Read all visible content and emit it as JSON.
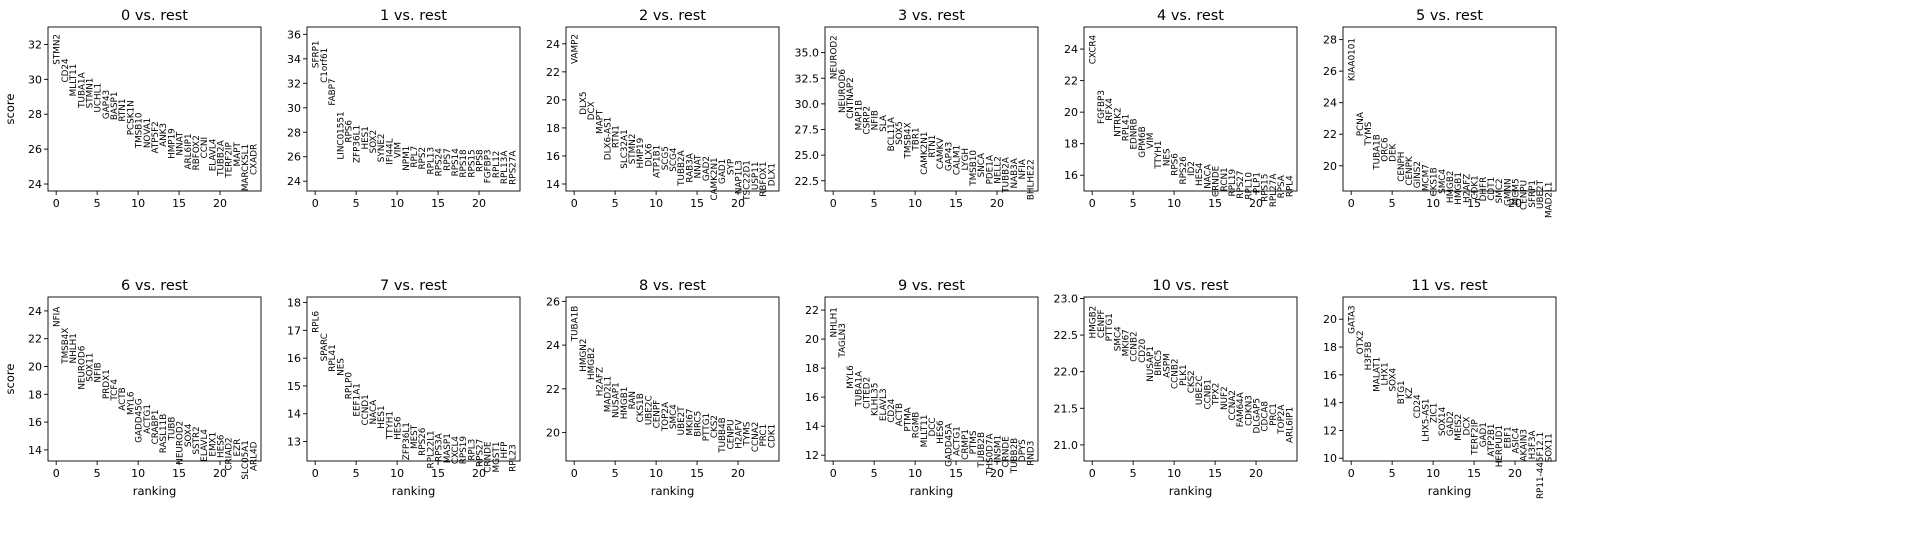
{
  "figure": {
    "ylabel": "score",
    "xlabel": "ranking"
  },
  "chart_data": [
    {
      "type": "scatter",
      "title": "0 vs. rest",
      "xlabel": "",
      "ylabel": "score",
      "xlim": [
        -1,
        25
      ],
      "ylim": [
        23.6,
        33.0
      ],
      "xticks": [
        "0",
        "5",
        "10",
        "15",
        "20"
      ],
      "yticks": [
        "24",
        "26",
        "28",
        "30",
        "32"
      ],
      "genes": [
        "STMN2",
        "CD24",
        "MLLT11",
        "TUBA1A",
        "STMN1",
        "UCHL1",
        "GAP43",
        "BASP1",
        "RTN1",
        "PCSK1N",
        "TMSB10",
        "NOVA1",
        "ATP5F2",
        "ANK3",
        "HMP19",
        "NNAT",
        "ARL6IP1",
        "RBFOX2",
        "CCNI",
        "ELAVL4",
        "TUBB2A",
        "TERF2IP",
        "MAPT",
        "MARCKSL1",
        "CXADR"
      ],
      "values": [
        32.6,
        31.2,
        30.9,
        30.4,
        30.1,
        29.8,
        29.4,
        29.3,
        28.9,
        28.8,
        28.1,
        27.8,
        27.6,
        27.5,
        27.2,
        27.0,
        26.9,
        26.8,
        26.7,
        26.6,
        26.5,
        26.4,
        26.4,
        26.3,
        26.3
      ]
    },
    {
      "type": "scatter",
      "title": "1 vs. rest",
      "xlabel": "",
      "ylabel": "",
      "xlim": [
        -1,
        25
      ],
      "ylim": [
        23.2,
        36.6
      ],
      "xticks": [
        "0",
        "5",
        "10",
        "15",
        "20"
      ],
      "yticks": [
        "24",
        "26",
        "28",
        "30",
        "32",
        "34",
        "36"
      ],
      "genes": [
        "SFRP1",
        "C1orf61",
        "FABP7",
        "LINC01551",
        "RPS6",
        "ZFP36L1",
        "HES1",
        "SOX2",
        "SYNE2",
        "IFI44L",
        "VIM",
        "NPM1",
        "RPL7",
        "RPS2",
        "RPL13",
        "RPS24",
        "RPS7",
        "RPS14",
        "RPS18",
        "RPS15",
        "RPS8",
        "FGFBP3",
        "RPL12",
        "RPL13A",
        "RPS27A"
      ],
      "values": [
        35.5,
        34.9,
        32.4,
        29.7,
        29.0,
        28.6,
        28.5,
        28.2,
        27.9,
        27.5,
        27.2,
        26.9,
        26.9,
        26.8,
        26.8,
        26.7,
        26.7,
        26.7,
        26.6,
        26.6,
        26.6,
        26.6,
        26.5,
        26.5,
        26.5
      ]
    },
    {
      "type": "scatter",
      "title": "2 vs. rest",
      "xlabel": "",
      "ylabel": "",
      "xlim": [
        -1,
        25
      ],
      "ylim": [
        13.5,
        25.2
      ],
      "xticks": [
        "0",
        "5",
        "10",
        "15",
        "20"
      ],
      "yticks": [
        "14",
        "16",
        "18",
        "20",
        "22",
        "24"
      ],
      "genes": [
        "VAMP2",
        "DLX5",
        "DCX",
        "MAPT",
        "DLX6-AS1",
        "RTN1",
        "SLC32A1",
        "STMN2",
        "HMP19",
        "DLX6",
        "ATP1B1",
        "SCG5",
        "SCG4",
        "TUBB2A",
        "RAB3A",
        "NNAT",
        "GAD2",
        "CAMK2N1",
        "GAD1",
        "SYP",
        "NAP1L3",
        "TSC22D1",
        "USP11",
        "RBFOX1",
        "DLX1"
      ],
      "values": [
        24.7,
        20.6,
        19.9,
        19.3,
        18.8,
        18.2,
        17.9,
        17.6,
        17.3,
        16.9,
        16.8,
        16.7,
        16.6,
        16.4,
        16.2,
        16.1,
        16.0,
        15.9,
        15.8,
        15.8,
        15.7,
        15.7,
        15.6,
        15.6,
        15.5
      ]
    },
    {
      "type": "scatter",
      "title": "3 vs. rest",
      "xlabel": "",
      "ylabel": "",
      "xlim": [
        -1,
        25
      ],
      "ylim": [
        21.5,
        37.5
      ],
      "xticks": [
        "0",
        "5",
        "10",
        "15",
        "20"
      ],
      "yticks": [
        "22.5",
        "25.0",
        "27.5",
        "30.0",
        "32.5",
        "35.0"
      ],
      "genes": [
        "NEUROD2",
        "NEUROD6",
        "CNTNAP2",
        "MAP1B",
        "CSRP2",
        "NFIB",
        "SLA",
        "BCL11A",
        "SOX5",
        "TMSB4X",
        "TBR1",
        "CAMK2N1",
        "RTN1",
        "CAMKV",
        "GAP43",
        "CALM1",
        "LYGH",
        "TMSB10",
        "SNCA",
        "PDE1A",
        "NELL2",
        "TUBB2A",
        "NAB3A",
        "NFIA",
        "BHLHE22"
      ],
      "values": [
        36.7,
        33.4,
        32.6,
        30.4,
        29.8,
        29.4,
        28.9,
        28.7,
        28.3,
        28.2,
        27.7,
        27.3,
        27.0,
        26.7,
        26.3,
        26.0,
        25.7,
        25.5,
        25.2,
        25.0,
        24.9,
        24.8,
        24.7,
        24.6,
        24.6
      ]
    },
    {
      "type": "scatter",
      "title": "4 vs. rest",
      "xlabel": "",
      "ylabel": "",
      "xlim": [
        -1,
        25
      ],
      "ylim": [
        15.0,
        25.4
      ],
      "xticks": [
        "0",
        "5",
        "10",
        "15",
        "20"
      ],
      "yticks": [
        "16",
        "18",
        "20",
        "22",
        "24"
      ],
      "genes": [
        "CXCR4",
        "FGFBP3",
        "RFX4",
        "NTRK2",
        "RPL41",
        "EDNRB",
        "GPM6B",
        "VIM",
        "TTYH1",
        "NES",
        "RPS6",
        "RPS26",
        "ID2",
        "HES4",
        "NACA",
        "CRNDE",
        "RCN1",
        "RPL19",
        "RPS27",
        "RPL10",
        "PLP1",
        "RPS15",
        "RPL27A",
        "RPSA",
        "RPL4"
      ],
      "values": [
        24.9,
        21.4,
        20.9,
        20.3,
        19.9,
        19.6,
        19.1,
        18.7,
        18.2,
        17.7,
        17.4,
        17.2,
        16.9,
        16.8,
        16.7,
        16.6,
        16.5,
        16.4,
        16.3,
        16.2,
        16.2,
        16.1,
        16.1,
        16.0,
        16.0
      ]
    },
    {
      "type": "scatter",
      "title": "5 vs. rest",
      "xlabel": "",
      "ylabel": "",
      "xlim": [
        -1,
        25
      ],
      "ylim": [
        18.4,
        28.8
      ],
      "xticks": [
        "0",
        "5",
        "10",
        "15",
        "20"
      ],
      "yticks": [
        "20",
        "22",
        "24",
        "26",
        "28"
      ],
      "genes": [
        "KIAA0101",
        "PCNA",
        "TYMS",
        "TUBA1B",
        "ORC6",
        "DEK",
        "CENPH",
        "CENPK",
        "GINS2",
        "MCM7",
        "CKS1B",
        "SMC4",
        "HMGB2",
        "HMGB1",
        "H2AFZ",
        "CDK1",
        "DHFR",
        "CDT1",
        "SMC2",
        "GMNN",
        "MCM5",
        "CENPU",
        "SFRP1",
        "UBE2T",
        "MAD2L1"
      ],
      "values": [
        28.1,
        23.4,
        22.8,
        22.0,
        21.8,
        21.4,
        20.9,
        20.6,
        20.3,
        20.1,
        19.9,
        19.8,
        19.7,
        19.6,
        19.5,
        19.4,
        19.3,
        19.3,
        19.2,
        19.2,
        19.2,
        19.1,
        19.1,
        19.1,
        19.0
      ]
    },
    {
      "type": "scatter",
      "title": "6 vs. rest",
      "xlabel": "ranking",
      "ylabel": "score",
      "xlim": [
        -1,
        25
      ],
      "ylim": [
        13.2,
        25.0
      ],
      "xticks": [
        "0",
        "5",
        "10",
        "15",
        "20"
      ],
      "yticks": [
        "14",
        "16",
        "18",
        "20",
        "22",
        "24"
      ],
      "genes": [
        "NFIA",
        "TMSB4X",
        "NHLH1",
        "NEUROD6",
        "SOX11",
        "NFIB",
        "PRDX1",
        "TCF4",
        "ACTB",
        "MYL6",
        "GADD45G",
        "ACTG1",
        "CRABP1",
        "RASL11B",
        "TUBB",
        "NEUROD2",
        "SOX4",
        "SSTR2",
        "ELAVL4",
        "EMX1",
        "HES6",
        "CRIAD2",
        "EZR",
        "SLC05A1",
        "ARL4D"
      ],
      "values": [
        24.3,
        22.8,
        22.4,
        21.5,
        21.0,
        20.3,
        19.8,
        19.1,
        18.5,
        18.2,
        17.7,
        17.3,
        16.9,
        16.6,
        16.4,
        16.1,
        15.9,
        15.7,
        15.5,
        15.3,
        15.1,
        14.9,
        14.8,
        14.7,
        14.6
      ]
    },
    {
      "type": "scatter",
      "title": "7 vs. rest",
      "xlabel": "ranking",
      "ylabel": "",
      "xlim": [
        -1,
        25
      ],
      "ylim": [
        12.3,
        18.2
      ],
      "xticks": [
        "0",
        "5",
        "10",
        "15",
        "20"
      ],
      "yticks": [
        "13",
        "14",
        "15",
        "16",
        "17",
        "18"
      ],
      "genes": [
        "RPL6",
        "SPARC",
        "RPL41",
        "NES",
        "RPLP0",
        "EEF1A1",
        "CCND1",
        "NACA",
        "HES1",
        "TTYH1",
        "HES6",
        "ZFP36L1",
        "MEST",
        "RPS26",
        "RPL22L1",
        "RPS3A",
        "MASP1",
        "CXCL4",
        "RPS19",
        "RPL3",
        "RPS27",
        "CRNDE",
        "MGST1",
        "HFP",
        "RPL23"
      ],
      "values": [
        17.7,
        16.9,
        16.5,
        16.0,
        15.5,
        15.1,
        14.7,
        14.5,
        14.3,
        14.1,
        13.9,
        13.7,
        13.6,
        13.5,
        13.4,
        13.3,
        13.3,
        13.2,
        13.2,
        13.1,
        13.1,
        13.0,
        13.0,
        13.0,
        12.9
      ]
    },
    {
      "type": "scatter",
      "title": "8 vs. rest",
      "xlabel": "ranking",
      "ylabel": "",
      "xlim": [
        -1,
        25
      ],
      "ylim": [
        18.7,
        26.2
      ],
      "xticks": [
        "0",
        "5",
        "10",
        "15",
        "20"
      ],
      "yticks": [
        "20",
        "22",
        "24",
        "26"
      ],
      "genes": [
        "TUBA1B",
        "HMGN2",
        "HMGB2",
        "H2AFZ",
        "MAD2L1",
        "NUSAP1",
        "HMGB1",
        "RAN",
        "CKS1B",
        "UBE2C",
        "CENPF",
        "TOP2A",
        "SMC4",
        "UBE2T",
        "MKI67",
        "BIRC5",
        "PTTG1",
        "CKS2",
        "TUBB4B",
        "CENPU",
        "H2AFV",
        "TYMS",
        "CCNA2",
        "PRC1",
        "CDK1"
      ],
      "values": [
        25.8,
        24.3,
        23.9,
        23.0,
        22.6,
        22.3,
        22.1,
        21.9,
        21.8,
        21.7,
        21.5,
        21.4,
        21.3,
        21.2,
        21.1,
        21.0,
        20.9,
        20.8,
        20.7,
        20.6,
        20.6,
        20.5,
        20.5,
        20.4,
        20.4
      ]
    },
    {
      "type": "scatter",
      "title": "9 vs. rest",
      "xlabel": "ranking",
      "ylabel": "",
      "xlim": [
        -1,
        25
      ],
      "ylim": [
        11.6,
        22.9
      ],
      "xticks": [
        "0",
        "5",
        "10",
        "15",
        "20"
      ],
      "yticks": [
        "12",
        "14",
        "16",
        "18",
        "20",
        "22"
      ],
      "genes": [
        "NHLH1",
        "TAGLN3",
        "MYL6",
        "TUBA1A",
        "CITED2",
        "KLHL35",
        "ELAVL3",
        "CD24",
        "ACTB",
        "PTMA",
        "RGMB",
        "MLLT11",
        "DCC",
        "HES6",
        "GADD45A",
        "ACTG1",
        "CRMP1",
        "PTMS",
        "TUBB2B",
        "THS0D7A",
        "INSM1",
        "CRNDE",
        "TUBB2B",
        "DPYS",
        "RND3"
      ],
      "values": [
        22.2,
        21.1,
        18.2,
        17.8,
        17.4,
        17.0,
        16.6,
        15.9,
        15.6,
        15.3,
        15.0,
        14.8,
        14.6,
        14.4,
        14.2,
        14.0,
        13.8,
        13.7,
        13.6,
        13.5,
        13.4,
        13.3,
        13.2,
        13.1,
        13.0
      ]
    },
    {
      "type": "scatter",
      "title": "10 vs. rest",
      "xlabel": "ranking",
      "ylabel": "",
      "xlim": [
        -1,
        25
      ],
      "ylim": [
        20.78,
        23.02
      ],
      "xticks": [
        "0",
        "5",
        "10",
        "15",
        "20"
      ],
      "yticks": [
        "21.0",
        "21.5",
        "22.0",
        "22.5",
        "23.0"
      ],
      "genes": [
        "HMGB2",
        "CENPF",
        "PTTG1",
        "SMC4",
        "MKI67",
        "CCNB2",
        "CD20",
        "NUSAP1",
        "BIRC5",
        "ASPM",
        "CCNB2",
        "PLK1",
        "CKS2",
        "UBE2C",
        "CCNB1",
        "TPX2",
        "NUF2",
        "CCNA2",
        "FAM64A",
        "CDKN3",
        "DLGAP5",
        "CDCA8",
        "PRC1",
        "TOP2A",
        "ARL6IP1"
      ],
      "values": [
        22.9,
        22.85,
        22.8,
        22.62,
        22.58,
        22.55,
        22.45,
        22.35,
        22.3,
        22.25,
        22.18,
        22.1,
        22.02,
        21.95,
        21.9,
        21.85,
        21.8,
        21.75,
        21.72,
        21.68,
        21.64,
        21.6,
        21.57,
        21.55,
        21.52
      ]
    },
    {
      "type": "scatter",
      "title": "11 vs. rest",
      "xlabel": "ranking",
      "ylabel": "",
      "xlim": [
        -1,
        25
      ],
      "ylim": [
        9.8,
        21.6
      ],
      "xticks": [
        "0",
        "5",
        "10",
        "15",
        "20"
      ],
      "yticks": [
        "10",
        "12",
        "14",
        "16",
        "18",
        "20"
      ],
      "genes": [
        "GATA3",
        "OTX2",
        "H3F3B",
        "MALAT1",
        "LHX1",
        "SOX4",
        "BTG1",
        "KZ",
        "CD24",
        "LHX5-AS1",
        "ZIC1",
        "SOX14",
        "GAD2",
        "MEIS2",
        "DCX",
        "TERF2IP",
        "GAD1",
        "ATP2B1",
        "HERPUD1",
        "EBF1",
        "ASIC4",
        "AKAIN3",
        "H3F3A",
        "RP11-445F12.1",
        "SOX11"
      ],
      "values": [
        21.0,
        19.2,
        18.4,
        17.3,
        16.9,
        16.5,
        15.6,
        15.1,
        14.6,
        14.3,
        14.0,
        13.7,
        13.4,
        13.2,
        13.0,
        12.8,
        12.6,
        12.5,
        12.4,
        12.3,
        12.2,
        12.1,
        12.0,
        11.9,
        11.8
      ]
    }
  ]
}
